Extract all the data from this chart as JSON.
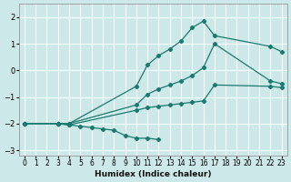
{
  "background_color": "#cce8e8",
  "grid_color": "#ffffff",
  "line_color": "#1a7a6e",
  "xlabel": "Humidex (Indice chaleur)",
  "xlim": [
    -0.5,
    23.5
  ],
  "ylim": [
    -3.2,
    2.5
  ],
  "xticks": [
    0,
    1,
    2,
    3,
    4,
    5,
    6,
    7,
    8,
    9,
    10,
    11,
    12,
    13,
    14,
    15,
    16,
    17,
    18,
    19,
    20,
    21,
    22,
    23
  ],
  "yticks": [
    -3,
    -2,
    -1,
    0,
    1,
    2
  ],
  "line_top": {
    "x": [
      0,
      3,
      4,
      10,
      11,
      12,
      13,
      14,
      15,
      16,
      17,
      22,
      23
    ],
    "y": [
      -2.0,
      -2.0,
      -2.0,
      -0.6,
      0.2,
      0.55,
      0.8,
      1.1,
      1.6,
      1.85,
      1.3,
      0.9,
      0.7
    ]
  },
  "line_upper_mid": {
    "x": [
      0,
      3,
      4,
      10,
      11,
      12,
      13,
      14,
      15,
      16,
      17,
      22,
      23
    ],
    "y": [
      -2.0,
      -2.0,
      -2.0,
      -1.3,
      -0.9,
      -0.7,
      -0.55,
      -0.4,
      -0.2,
      0.1,
      1.0,
      -0.4,
      -0.5
    ]
  },
  "line_lower_mid": {
    "x": [
      0,
      3,
      4,
      10,
      11,
      12,
      13,
      14,
      15,
      16,
      17,
      22,
      23
    ],
    "y": [
      -2.0,
      -2.0,
      -2.05,
      -1.5,
      -1.4,
      -1.35,
      -1.3,
      -1.25,
      -1.2,
      -1.15,
      -0.55,
      -0.6,
      -0.65
    ]
  },
  "line_bottom": {
    "x": [
      0,
      3,
      4,
      5,
      6,
      7,
      8,
      9,
      10,
      11,
      12
    ],
    "y": [
      -2.0,
      -2.0,
      -2.05,
      -2.1,
      -2.15,
      -2.2,
      -2.25,
      -2.45,
      -2.55,
      -2.55,
      -2.6
    ]
  }
}
